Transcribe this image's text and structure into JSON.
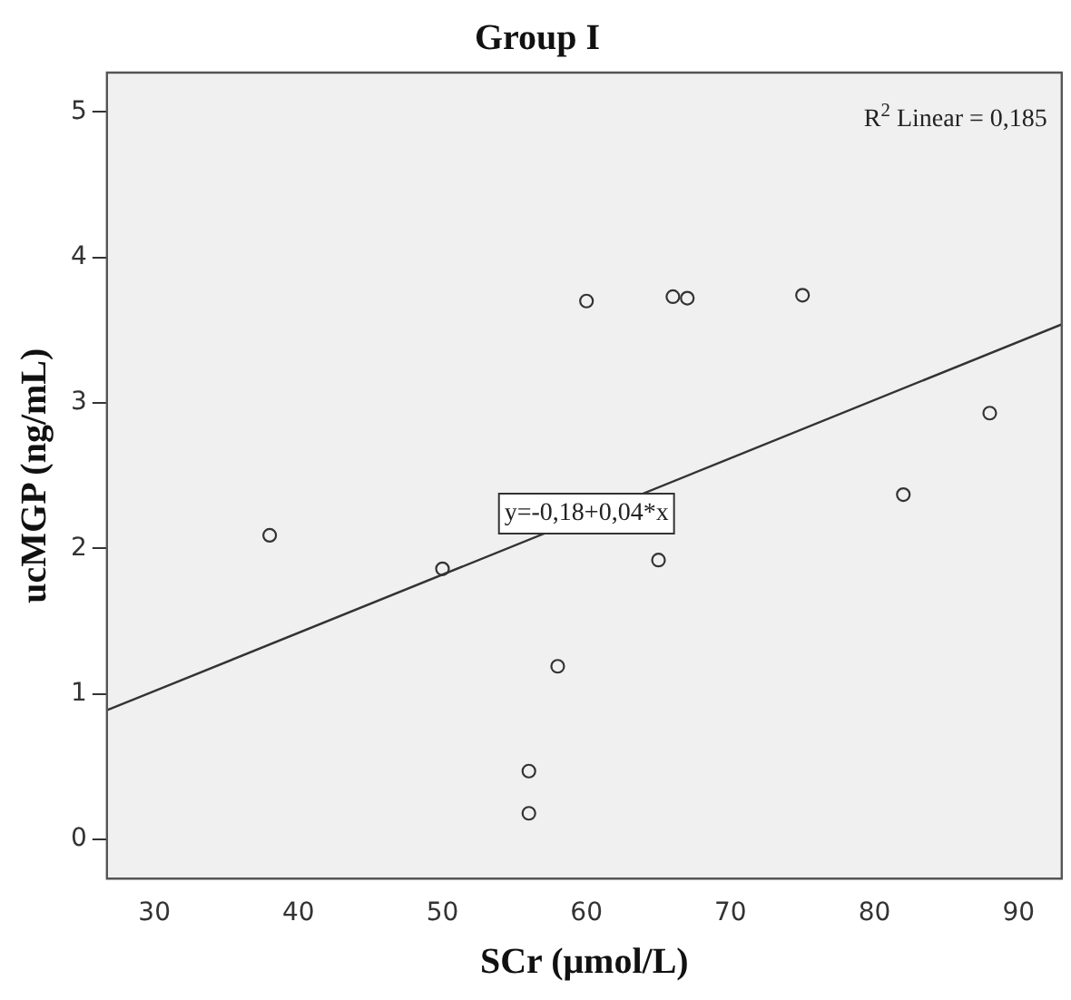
{
  "chart_data": {
    "type": "scatter",
    "title": "Group I",
    "xlabel": "SCr (μmol/L)",
    "ylabel": "ucMGP (ng/mL)",
    "xlim": [
      26.7,
      93
    ],
    "xticks": [
      30,
      40,
      50,
      60,
      70,
      80,
      90
    ],
    "ylim": [
      -0.27,
      5.27
    ],
    "yticks": [
      0,
      1,
      2,
      3,
      4,
      5
    ],
    "grid": false,
    "legend": false,
    "marker": "circle",
    "series": [
      {
        "color": "#333333",
        "x": [
          38,
          50,
          56,
          56,
          58,
          65,
          82,
          60,
          66,
          67,
          75,
          88
        ],
        "values": [
          2.09,
          1.86,
          0.47,
          0.18,
          1.19,
          1.92,
          2.37,
          3.7,
          3.73,
          3.72,
          3.74,
          2.93
        ]
      },
      {
        "type": "line",
        "color": "#333333",
        "x": [
          26.7,
          93
        ],
        "values": [
          0.888,
          3.54
        ],
        "marker": "none"
      }
    ],
    "annotations": [
      "R$^{2}$ Linear = 0,185",
      {
        "text": "y=-0,18+0,04*x",
        "x": 60,
        "y": 2.24
      }
    ]
  }
}
